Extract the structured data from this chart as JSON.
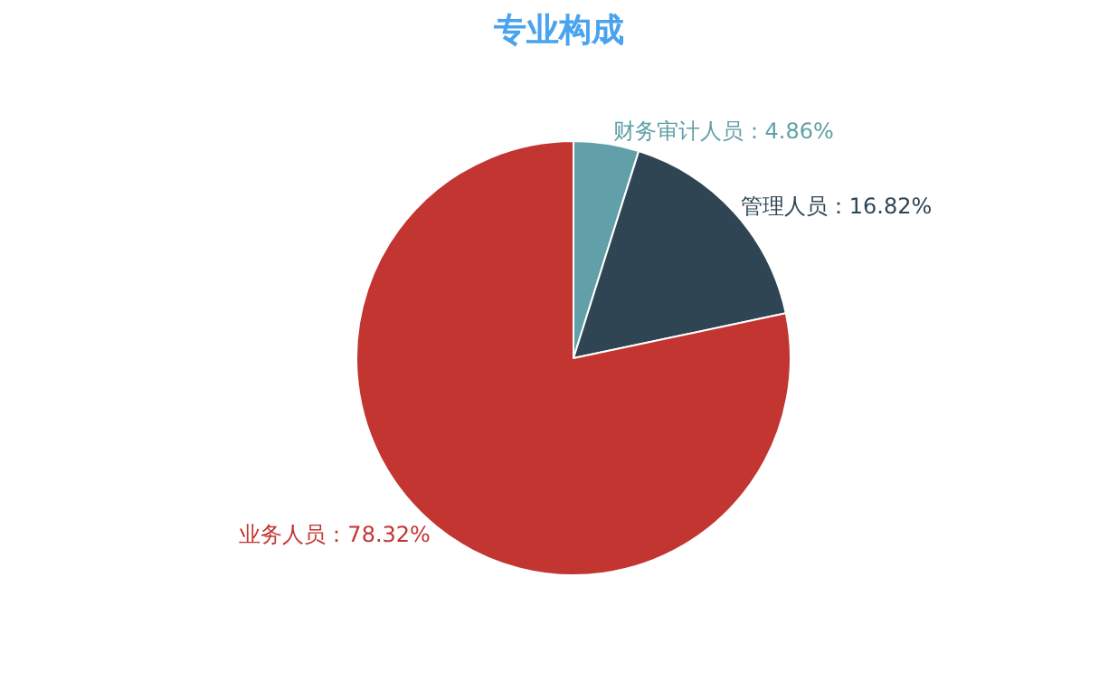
{
  "chart_data": {
    "type": "pie",
    "title": "专业构成",
    "categories": [
      "财务审计人员",
      "管理人员",
      "业务人员"
    ],
    "values": [
      4.86,
      16.82,
      78.32
    ],
    "colors": [
      "#61a0a8",
      "#2f4554",
      "#c23531"
    ],
    "value_labels": [
      "4.86%",
      "16.82%",
      "78.32%"
    ],
    "legend": false
  }
}
